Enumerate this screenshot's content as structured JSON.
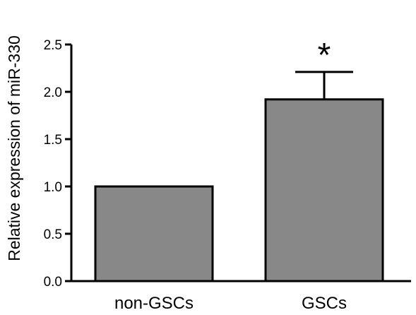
{
  "chart_data": {
    "type": "bar",
    "categories": [
      "non-GSCs",
      "GSCs"
    ],
    "values": [
      1.0,
      1.92
    ],
    "error_bars_upper": [
      0.0,
      0.29
    ],
    "annotations": [
      "",
      "*"
    ],
    "title": "",
    "xlabel": "",
    "ylabel": "Relative expression of miR-330",
    "ylim": [
      0,
      2.5
    ],
    "yticks": [
      "0.0",
      "0.5",
      "1.0",
      "1.5",
      "2.0",
      "2.5"
    ],
    "grid": false,
    "bar_color": "#888888",
    "edge_color": "#000000"
  }
}
